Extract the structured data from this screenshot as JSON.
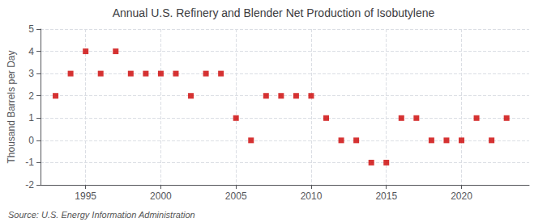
{
  "chart_data": {
    "type": "scatter",
    "title": "Annual U.S. Refinery and Blender Net Production of Isobutylene",
    "ylabel": "Thousand Barrels per Day",
    "annotations": [
      "Source: U.S. Energy Information Administration"
    ],
    "x": [
      1993,
      1994,
      1995,
      1996,
      1997,
      1998,
      1999,
      2000,
      2001,
      2002,
      2003,
      2004,
      2005,
      2006,
      2007,
      2008,
      2009,
      2010,
      2011,
      2012,
      2013,
      2014,
      2015,
      2016,
      2017,
      2018,
      2019,
      2020,
      2021,
      2022,
      2023
    ],
    "values": [
      2,
      3,
      4,
      3,
      4,
      3,
      3,
      3,
      3,
      2,
      3,
      3,
      1,
      0,
      2,
      2,
      2,
      2,
      1,
      0,
      0,
      -1,
      -1,
      1,
      1,
      0,
      0,
      0,
      1,
      0,
      1
    ],
    "color": "#cc0000",
    "marker": "square",
    "xlim": [
      1992,
      2024.5
    ],
    "xticks": [
      1995,
      2000,
      2005,
      2010,
      2015,
      2020
    ],
    "ylim": [
      -2,
      5
    ],
    "yticks": [
      -2,
      -1,
      0,
      1,
      2,
      3,
      4,
      5
    ],
    "grid": true
  }
}
